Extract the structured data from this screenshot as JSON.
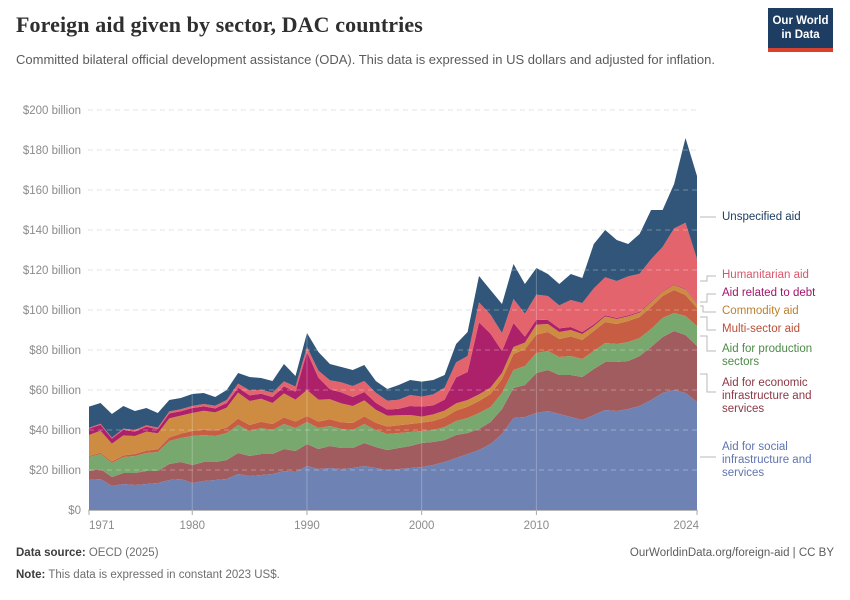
{
  "header": {
    "title": "Foreign aid given by sector, DAC countries",
    "subtitle": "Committed bilateral official development assistance (ODA). This data is expressed in US dollars and adjusted for inflation.",
    "logo": {
      "line1": "Our World",
      "line2": "in Data",
      "bg_color": "#1d3d63",
      "accent_color": "#d7412e"
    }
  },
  "footer": {
    "source_label": "Data source:",
    "source_value": " OECD (2025)",
    "note_label": "Note:",
    "note_value": " This data is expressed in constant 2023 US$.",
    "link": "OurWorldinData.org/foreign-aid | CC BY"
  },
  "chart_data": {
    "type": "area",
    "stacked": true,
    "title": "Foreign aid given by sector, DAC countries",
    "unit": "US$ billion (constant 2023 US$)",
    "grid": "dashed-horizontal",
    "legend_position": "right",
    "ylim": [
      0,
      200
    ],
    "xlim": [
      1971,
      2024
    ],
    "y_ticks": [
      {
        "value": 0,
        "label": "$0"
      },
      {
        "value": 20,
        "label": "$20 billion"
      },
      {
        "value": 40,
        "label": "$40 billion"
      },
      {
        "value": 60,
        "label": "$60 billion"
      },
      {
        "value": 80,
        "label": "$80 billion"
      },
      {
        "value": 100,
        "label": "$100 billion"
      },
      {
        "value": 120,
        "label": "$120 billion"
      },
      {
        "value": 140,
        "label": "$140 billion"
      },
      {
        "value": 160,
        "label": "$160 billion"
      },
      {
        "value": 180,
        "label": "$180 billion"
      },
      {
        "value": 200,
        "label": "$200 billion"
      }
    ],
    "x_ticks": [
      {
        "year": 1971,
        "label": "1971"
      },
      {
        "year": 1980,
        "label": "1980"
      },
      {
        "year": 1990,
        "label": "1990"
      },
      {
        "year": 2000,
        "label": "2000"
      },
      {
        "year": 2010,
        "label": "2010"
      },
      {
        "year": 2024,
        "label": "2024"
      }
    ],
    "years": [
      1971,
      1972,
      1973,
      1974,
      1975,
      1976,
      1977,
      1978,
      1979,
      1980,
      1981,
      1982,
      1983,
      1984,
      1985,
      1986,
      1987,
      1988,
      1989,
      1990,
      1991,
      1992,
      1993,
      1994,
      1995,
      1996,
      1997,
      1998,
      1999,
      2000,
      2001,
      2002,
      2003,
      2004,
      2005,
      2006,
      2007,
      2008,
      2009,
      2010,
      2011,
      2012,
      2013,
      2014,
      2015,
      2016,
      2017,
      2018,
      2019,
      2020,
      2021,
      2022,
      2023,
      2024
    ],
    "series": [
      {
        "name": "Aid for social infrastructure and services",
        "color": "#6e83b4",
        "label_color": "#6074ae",
        "values": [
          15,
          15.5,
          12,
          13,
          12.5,
          13,
          13.5,
          15,
          15.5,
          13.5,
          14.5,
          15,
          15.5,
          18,
          17,
          17.5,
          18,
          19.5,
          19,
          22,
          20.5,
          21,
          20.5,
          21,
          22,
          21,
          20,
          20.5,
          21,
          21.5,
          22.5,
          24,
          26,
          28,
          30,
          33,
          38,
          46,
          46.5,
          48.5,
          49.5,
          48,
          46.5,
          45,
          47.5,
          50,
          49.5,
          50.5,
          52,
          55,
          58.5,
          60,
          58.5,
          54
        ]
      },
      {
        "name": "Aid for economic infrastructure and services",
        "color": "#a05c5f",
        "label_color": "#8b3844",
        "values": [
          4.5,
          5,
          4.5,
          5.5,
          6,
          6.5,
          6,
          8,
          8.5,
          9,
          9.5,
          9,
          9.5,
          10.5,
          10,
          10.5,
          10,
          11,
          10.5,
          11,
          10,
          11,
          10.5,
          10,
          11.5,
          10.5,
          10,
          10.5,
          11,
          12,
          11.5,
          11,
          11.5,
          10.5,
          10.5,
          11,
          12.5,
          15,
          16,
          20,
          20.5,
          19.5,
          21,
          21.5,
          23,
          24,
          24.5,
          24,
          25,
          26.5,
          28,
          29.5,
          29,
          28
        ]
      },
      {
        "name": "Aid for production sectors",
        "color": "#79a86f",
        "label_color": "#4c8a45",
        "values": [
          7,
          7.5,
          7,
          8,
          8.5,
          9,
          9.5,
          11.5,
          12,
          14.5,
          13.5,
          13,
          13.5,
          14,
          12.5,
          13,
          12,
          12.5,
          11.5,
          11,
          10.5,
          10,
          9.5,
          9,
          9.5,
          8.5,
          8,
          7.5,
          7,
          6,
          6,
          6.5,
          7,
          7.5,
          8,
          7.5,
          8,
          9,
          9.5,
          10,
          9.5,
          9,
          9.5,
          9,
          9,
          9.5,
          9,
          9.5,
          9,
          9,
          9.5,
          9,
          9.5,
          10
        ]
      },
      {
        "name": "Multi-sector aid",
        "color": "#c75d42",
        "label_color": "#bb4e35",
        "values": [
          0.5,
          0.6,
          0.7,
          0.8,
          1,
          1.2,
          1.4,
          1.8,
          2.2,
          2.5,
          2.6,
          2.8,
          2.7,
          3.2,
          3,
          3.1,
          3,
          3.3,
          3.2,
          3,
          3.2,
          3.4,
          3.3,
          3.5,
          3.8,
          3.6,
          3.7,
          3.9,
          4,
          4.2,
          4.5,
          4.8,
          5.2,
          5.6,
          6,
          6.5,
          7,
          8,
          8.5,
          9.2,
          9.5,
          9,
          9.8,
          9.5,
          10,
          10.5,
          10,
          10.5,
          10.5,
          11,
          11,
          11.5,
          10.5,
          9
        ]
      },
      {
        "name": "Commodity aid",
        "color": "#cd8c42",
        "label_color": "#bd802f",
        "values": [
          10.5,
          11,
          9,
          10,
          9,
          9.5,
          8,
          9.5,
          9,
          9,
          9.5,
          9,
          10,
          13,
          12,
          11.5,
          10.5,
          12,
          11,
          13,
          11,
          10,
          9.5,
          8.5,
          8,
          6.5,
          5.5,
          5,
          4.5,
          3,
          3.3,
          3.4,
          3.6,
          3.4,
          3.3,
          3.2,
          3,
          3.5,
          3.2,
          5,
          4,
          3.5,
          3.2,
          3,
          2.5,
          2.8,
          2.5,
          2.3,
          2.2,
          2.5,
          2.2,
          2.5,
          2.8,
          2.2
        ]
      },
      {
        "name": "Aid related to debt",
        "color": "#ad216b",
        "label_color": "#a1156b",
        "values": [
          3.2,
          3,
          2.5,
          2.8,
          2.2,
          2.5,
          2,
          2.5,
          2.2,
          2.5,
          2.2,
          2,
          2.3,
          2.5,
          2.8,
          2.5,
          3,
          3.5,
          4,
          19,
          11,
          5,
          5.5,
          4.5,
          4.2,
          3.5,
          3,
          3.2,
          4.5,
          5,
          4.5,
          5.5,
          13,
          14,
          36,
          27,
          11,
          12,
          3,
          2.5,
          2,
          1.8,
          1.5,
          1,
          0.8,
          0.6,
          0.5,
          0.5,
          0.4,
          0.4,
          0.3,
          0.3,
          0.3,
          0.3
        ]
      },
      {
        "name": "Humanitarian aid",
        "color": "#e4646e",
        "label_color": "#d8566a",
        "values": [
          0.4,
          0.5,
          0.5,
          0.6,
          0.8,
          0.7,
          0.8,
          1,
          1,
          1,
          1.2,
          1.3,
          1.5,
          2,
          2.5,
          2,
          2.2,
          2.5,
          2.5,
          2.5,
          3.5,
          4.5,
          5,
          5.5,
          5.5,
          5,
          4.5,
          4.5,
          5.5,
          5,
          5.5,
          6,
          7.5,
          8,
          10,
          9.5,
          9,
          12,
          11.5,
          12.5,
          12,
          11.5,
          13.5,
          14.5,
          18,
          19,
          18.5,
          19.5,
          19,
          21,
          22,
          28,
          33,
          22
        ]
      },
      {
        "name": "Unspecified aid",
        "color": "#315679",
        "label_color": "#1d3d63",
        "values": [
          10.6,
          10.4,
          11.8,
          11.3,
          9.5,
          8.6,
          7.3,
          5.7,
          5.6,
          6,
          5.5,
          4.4,
          5,
          5.3,
          6.7,
          5.9,
          5.8,
          8.7,
          5.3,
          7,
          9.3,
          8.1,
          7.7,
          8,
          8,
          5.9,
          5.8,
          7.4,
          7.5,
          7.5,
          7.2,
          6.3,
          9.2,
          12,
          13.2,
          12.3,
          14.5,
          17.5,
          14.8,
          13.3,
          11,
          10.7,
          13,
          12.5,
          22.2,
          23.6,
          20.5,
          16.2,
          19.9,
          24.6,
          18.5,
          22.2,
          42.4,
          41.5
        ]
      }
    ]
  }
}
